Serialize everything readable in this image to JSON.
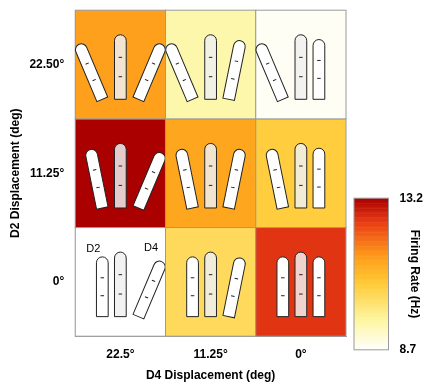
{
  "chart_data": {
    "type": "heatmap",
    "x_label": "D4 Displacement (deg)",
    "y_label": "D2 Displacement (deg)",
    "x_categories": [
      "22.5°",
      "11.25°",
      "0°"
    ],
    "y_categories": [
      "0°",
      "11.25°",
      "22.50°"
    ],
    "cells": [
      [
        8.7,
        10.3,
        12.6
      ],
      [
        13.2,
        11.3,
        10.6
      ],
      [
        11.4,
        9.5,
        8.8
      ]
    ],
    "colorbar": {
      "label": "Firing Rate (Hz)",
      "range": [
        8.7,
        13.2
      ],
      "ticks": [
        8.7,
        13.2
      ]
    },
    "annotations": [
      "D2",
      "D4"
    ],
    "grid": false
  }
}
